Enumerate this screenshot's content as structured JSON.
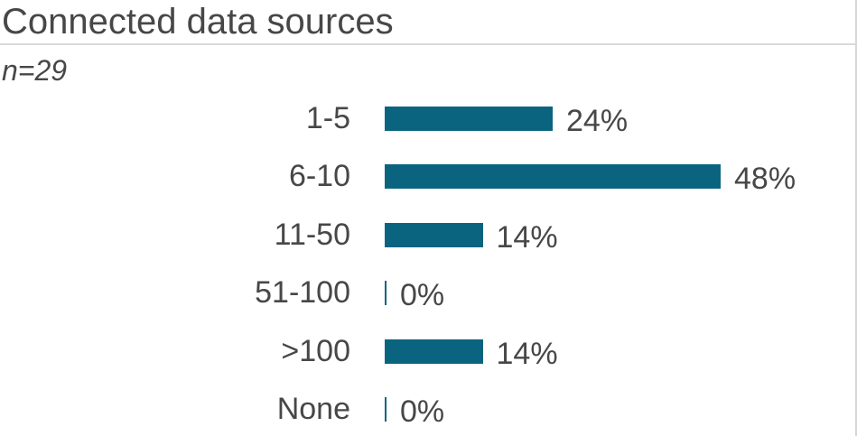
{
  "chart": {
    "title": "Connected data sources",
    "subtitle": "n=29"
  },
  "chart_data": {
    "type": "bar",
    "orientation": "horizontal",
    "title": "Connected data sources",
    "subtitle": "n=29",
    "categories": [
      "1-5",
      "6-10",
      "11-50",
      "51-100",
      ">100",
      "None"
    ],
    "values": [
      24,
      48,
      14,
      0,
      14,
      0
    ],
    "data_labels": [
      "24%",
      "48%",
      "14%",
      "0%",
      "14%",
      "0%"
    ],
    "xlabel": "",
    "ylabel": "",
    "xlim": [
      0,
      60
    ],
    "grid": false,
    "legend": false,
    "value_label_position": "outside-end"
  },
  "colors": {
    "bar": "#0b647f",
    "text": "#474747",
    "divider": "#d9d9d9"
  }
}
